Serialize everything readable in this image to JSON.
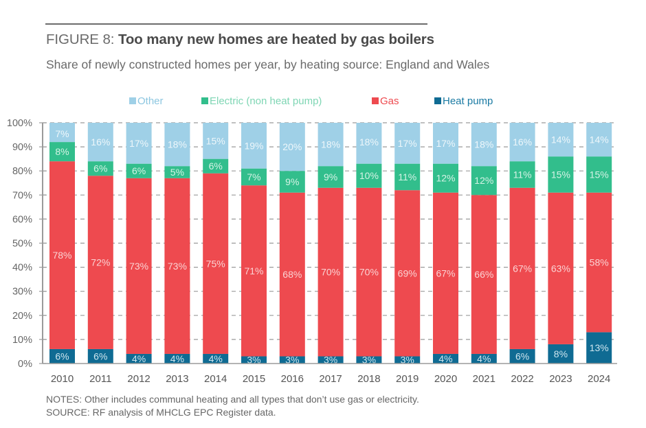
{
  "header": {
    "figure_label": "FIGURE 8:",
    "title": "Too many new homes are heated by gas boilers",
    "subtitle": "Share of newly constructed homes per year, by heating source: England and Wales"
  },
  "footer": {
    "notes": "NOTES: Other includes communal heating and all types that don’t use gas or electricity.",
    "source": "SOURCE: RF analysis of MHCLG EPC Register data."
  },
  "chart_data": {
    "type": "bar",
    "stacked": true,
    "title": "Too many new homes are heated by gas boilers",
    "subtitle": "Share of newly constructed homes per year, by heating source: England and Wales",
    "xlabel": "",
    "ylabel": "",
    "ylim": [
      0,
      100
    ],
    "yticks": [
      "0%",
      "10%",
      "20%",
      "30%",
      "40%",
      "50%",
      "60%",
      "70%",
      "80%",
      "90%",
      "100%"
    ],
    "grid": "horizontal-dashed",
    "legend_position": "top",
    "categories": [
      "2010",
      "2011",
      "2012",
      "2013",
      "2014",
      "2015",
      "2016",
      "2017",
      "2018",
      "2019",
      "2020",
      "2021",
      "2022",
      "2023",
      "2024"
    ],
    "series": [
      {
        "name": "Heat pump",
        "color": "#0f6b93",
        "label_color": "#cfe6ef",
        "values": [
          6,
          6,
          4,
          4,
          4,
          3,
          3,
          3,
          3,
          3,
          4,
          4,
          6,
          8,
          13
        ]
      },
      {
        "name": "Gas",
        "color": "#ee4a4f",
        "label_color": "#fbd3d4",
        "values": [
          78,
          72,
          73,
          73,
          75,
          71,
          68,
          70,
          70,
          69,
          67,
          66,
          67,
          63,
          58
        ]
      },
      {
        "name": "Electric (non heat pump)",
        "color": "#32be8c",
        "label_color": "#d6f3e6",
        "values": [
          8,
          6,
          6,
          5,
          6,
          7,
          9,
          9,
          10,
          11,
          12,
          12,
          11,
          15,
          15
        ]
      },
      {
        "name": "Other",
        "color": "#9fd0e7",
        "label_color": "#eef7fb",
        "values": [
          7,
          16,
          17,
          18,
          15,
          19,
          20,
          18,
          18,
          17,
          17,
          18,
          16,
          14,
          14
        ]
      }
    ],
    "legend_order": [
      "Other",
      "Electric (non heat pump)",
      "Gas",
      "Heat pump"
    ],
    "legend_text_colors": {
      "Other": "#8cc6e0",
      "Electric (non heat pump)": "#7fd6b4",
      "Gas": "#ee4a4f",
      "Heat pump": "#1a7aa3"
    }
  }
}
